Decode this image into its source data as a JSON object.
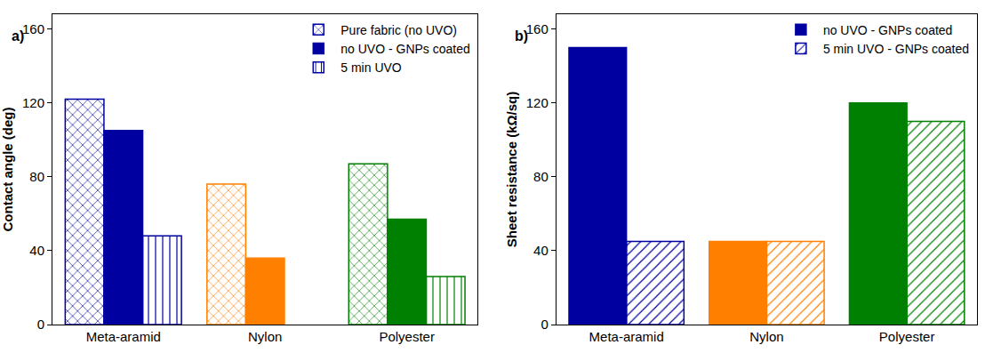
{
  "chart_data": [
    {
      "type": "bar",
      "annotations": [
        "a)"
      ],
      "ylabel": "Contact angle (deg)",
      "categories": [
        "Meta-aramid",
        "Nylon",
        "Polyester"
      ],
      "series": [
        {
          "name": "Pure fabric (no UVO)",
          "colors": [
            "#0000a0",
            "#ff8000",
            "#008000"
          ],
          "marker": "crosshatch",
          "values": [
            122,
            76,
            87
          ]
        },
        {
          "name": "no UVO - GNPs coated",
          "colors": [
            "#0000a0",
            "#ff8000",
            "#008000"
          ],
          "marker": "solid",
          "values": [
            105,
            36,
            57
          ]
        },
        {
          "name": "5 min UVO",
          "colors": [
            "#0000a0",
            "#ff8000",
            "#008000"
          ],
          "marker": "vertical",
          "values": [
            48,
            null,
            26
          ]
        }
      ],
      "ylim": [
        0,
        168
      ],
      "yticks": [
        0,
        40,
        80,
        120,
        160
      ],
      "grid": false,
      "legend": "upper right"
    },
    {
      "type": "bar",
      "annotations": [
        "b)"
      ],
      "ylabel": "Sheet resistance (kΩ/sq)",
      "categories": [
        "Meta-aramid",
        "Nylon",
        "Polyester"
      ],
      "series": [
        {
          "name": "no UVO - GNPs coated",
          "colors": [
            "#0000a0",
            "#ff8000",
            "#008000"
          ],
          "marker": "solid",
          "values": [
            150,
            45,
            120
          ]
        },
        {
          "name": "5 min UVO - GNPs coated",
          "colors": [
            "#0000a0",
            "#ff8000",
            "#008000"
          ],
          "marker": "diagonal",
          "values": [
            45,
            45,
            110
          ]
        }
      ],
      "ylim": [
        0,
        168
      ],
      "yticks": [
        0,
        40,
        80,
        120,
        160
      ],
      "grid": false,
      "legend": "upper right"
    }
  ]
}
